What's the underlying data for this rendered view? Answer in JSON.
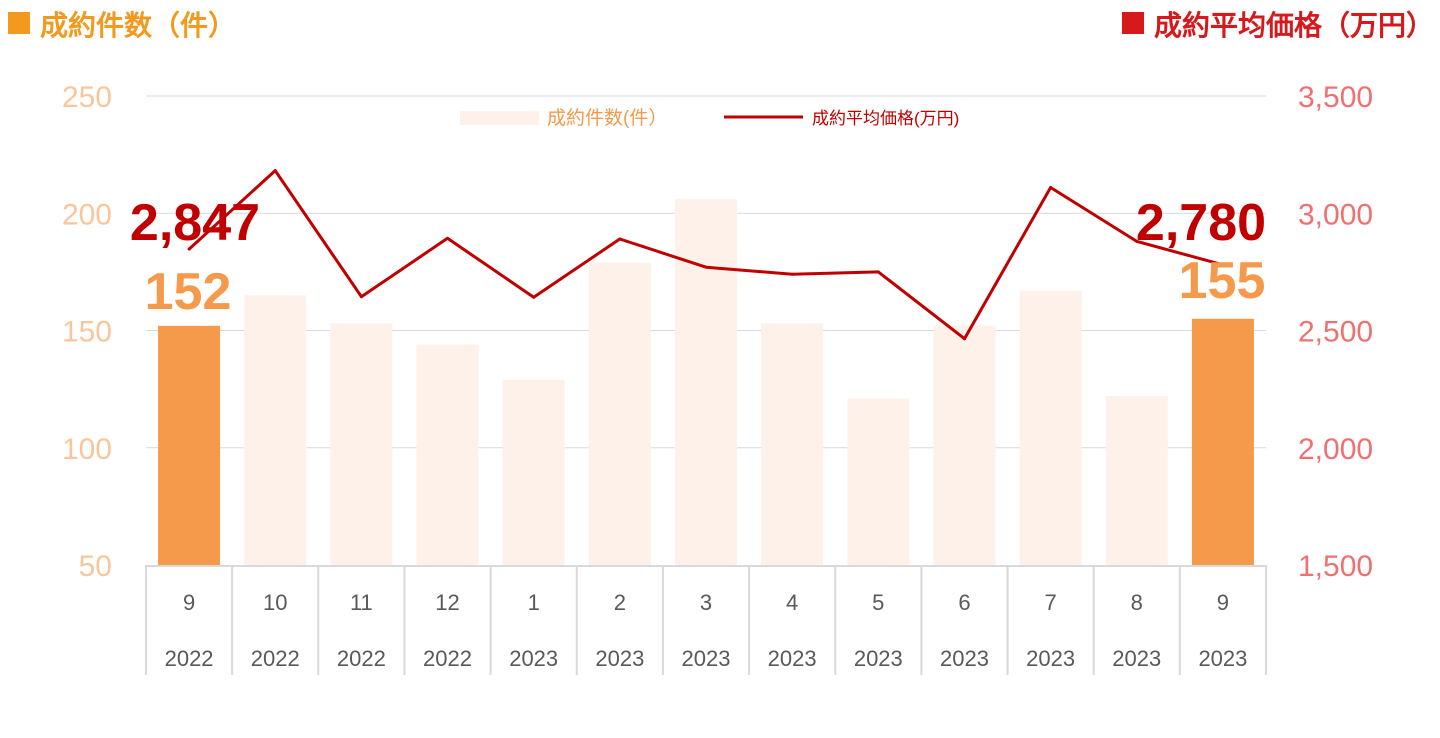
{
  "header": {
    "left_title": "成約件数（件）",
    "right_title": "成約平均価格（万円）"
  },
  "colors": {
    "count_header": "#F39A1E",
    "price_header": "#D7191C",
    "highlight_bar": "#F5994B",
    "faded_bar": "#FDF1E9",
    "line": "#C00000",
    "left_axis_text": "#F9C69B",
    "right_axis_text": "#F07070",
    "category_text": "#595959",
    "grid": "#D9D9D9"
  },
  "chart_data": {
    "type": "bar",
    "categories": [
      {
        "month": "9",
        "year": "2022"
      },
      {
        "month": "10",
        "year": "2022"
      },
      {
        "month": "11",
        "year": "2022"
      },
      {
        "month": "12",
        "year": "2022"
      },
      {
        "month": "1",
        "year": "2023"
      },
      {
        "month": "2",
        "year": "2023"
      },
      {
        "month": "3",
        "year": "2023"
      },
      {
        "month": "4",
        "year": "2023"
      },
      {
        "month": "5",
        "year": "2023"
      },
      {
        "month": "6",
        "year": "2023"
      },
      {
        "month": "7",
        "year": "2023"
      },
      {
        "month": "8",
        "year": "2023"
      },
      {
        "month": "9",
        "year": "2023"
      }
    ],
    "series": [
      {
        "name": "成約件数(件）",
        "type": "bar",
        "axis": "left",
        "values": [
          152,
          165,
          153,
          144,
          129,
          179,
          206,
          153,
          121,
          152,
          167,
          122,
          155
        ],
        "highlighted": [
          0,
          12
        ]
      },
      {
        "name": "成約平均価格(万円)",
        "type": "line",
        "axis": "right",
        "values": [
          2847,
          3182,
          2644,
          2893,
          2642,
          2890,
          2770,
          2740,
          2750,
          2465,
          3110,
          2880,
          2780
        ]
      }
    ],
    "y_left": {
      "min": 50,
      "max": 250,
      "ticks": [
        "50",
        "100",
        "150",
        "200",
        "250"
      ]
    },
    "y_right": {
      "min": 1500,
      "max": 3500,
      "ticks": [
        "1,500",
        "2,000",
        "2,500",
        "3,000",
        "3,500"
      ]
    },
    "legend_position": "top-center",
    "grid": true,
    "callouts": {
      "first_price": "2,847",
      "first_count": "152",
      "last_price": "2,780",
      "last_count": "155"
    }
  }
}
